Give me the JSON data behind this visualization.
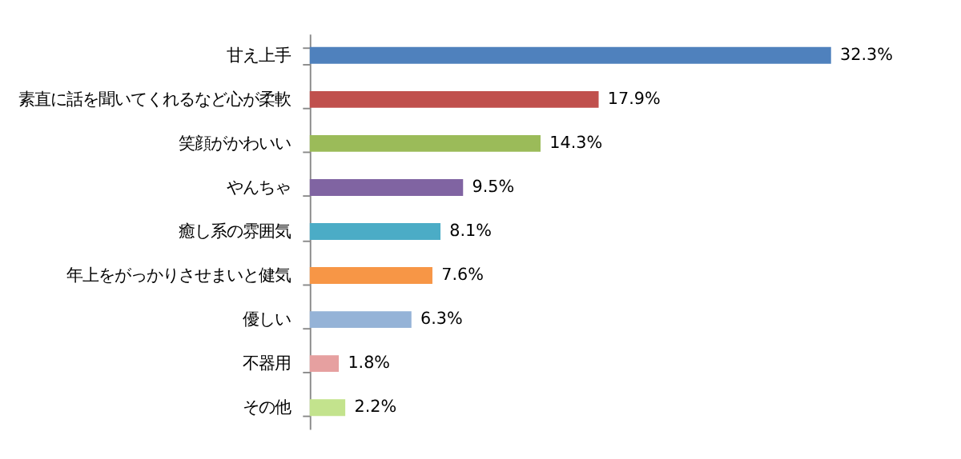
{
  "chart_data": {
    "type": "bar",
    "orientation": "horizontal",
    "categories": [
      "甘え上手",
      "素直に話を聞いてくれるなど心が柔軟",
      "笑顔がかわいい",
      "やんちゃ",
      "癒し系の雰囲気",
      "年上をがっかりさせまいと健気",
      "優しい",
      "不器用",
      "その他"
    ],
    "values": [
      32.3,
      17.9,
      14.3,
      9.5,
      8.1,
      7.6,
      6.3,
      1.8,
      2.2
    ],
    "colors": [
      "#4f81bd",
      "#c0504d",
      "#9bbb59",
      "#8064a2",
      "#4bacc6",
      "#f79646",
      "#95b3d7",
      "#e6a0a0",
      "#c3e38d"
    ],
    "value_labels": [
      "32.3%",
      "17.9%",
      "14.3%",
      "9.5%",
      "8.1%",
      "7.6%",
      "6.3%",
      "1.8%",
      "2.2%"
    ]
  }
}
